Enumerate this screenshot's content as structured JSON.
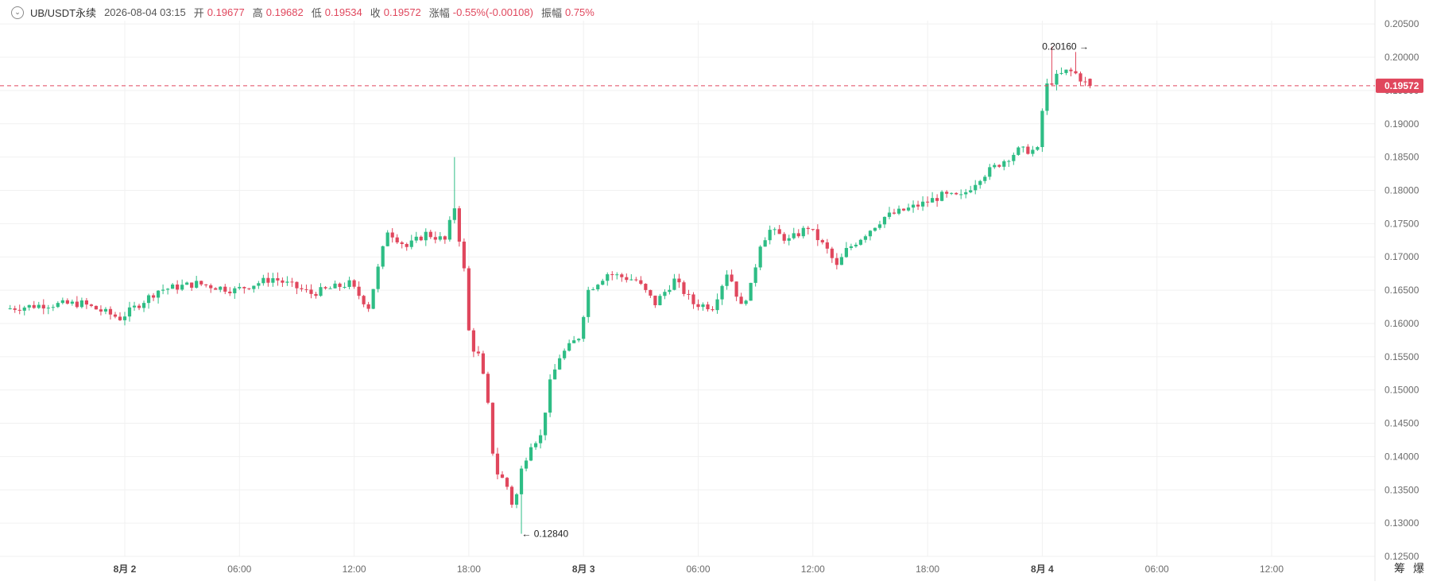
{
  "header": {
    "symbol": "UB/USDT永续",
    "timestamp": "2026-08-04 03:15",
    "open_label": "开",
    "open_value": "0.19677",
    "high_label": "高",
    "high_value": "0.19682",
    "low_label": "低",
    "low_value": "0.19534",
    "close_label": "收",
    "close_value": "0.19572",
    "change_label": "涨幅",
    "change_value": "-0.55%(-0.00108)",
    "amplitude_label": "振幅",
    "amplitude_value": "0.75%"
  },
  "side_tools": {
    "tool1": "筹",
    "tool2": "爆"
  },
  "colors": {
    "up": "#2ebd85",
    "down": "#e0475d",
    "grid": "#f1f1f1",
    "axis_text": "#6b6b6b"
  },
  "chart_data": {
    "type": "candlestick",
    "x_tick_labels": [
      "8月 2",
      "06:00",
      "12:00",
      "18:00",
      "8月 3",
      "06:00",
      "12:00",
      "18:00",
      "8月 4",
      "06:00",
      "12:00"
    ],
    "x_tick_hours": [
      0,
      6,
      12,
      18,
      24,
      30,
      36,
      42,
      48,
      54,
      60
    ],
    "y_ticks": [
      "0.12500",
      "0.13000",
      "0.13500",
      "0.14000",
      "0.14500",
      "0.15000",
      "0.15500",
      "0.16000",
      "0.16500",
      "0.17000",
      "0.17500",
      "0.18000",
      "0.18500",
      "0.19000",
      "0.19500",
      "0.20000",
      "0.20500"
    ],
    "ylim": [
      0.125,
      0.2055
    ],
    "last_price": "0.19572",
    "annotations": [
      {
        "label": "0.20160 →",
        "price": 0.2016,
        "hour": 50.6,
        "anchor": "end"
      },
      {
        "label": "← 0.12840",
        "price": 0.1284,
        "hour": 20.6,
        "anchor": "start"
      }
    ],
    "candle_interval_minutes": 15,
    "anchors": [
      [
        -6.0,
        0.1622
      ],
      [
        -4.0,
        0.1628
      ],
      [
        -2.0,
        0.163
      ],
      [
        0.0,
        0.1608
      ],
      [
        2.0,
        0.165
      ],
      [
        4.0,
        0.166
      ],
      [
        6.0,
        0.165
      ],
      [
        8.0,
        0.1668
      ],
      [
        10.0,
        0.1645
      ],
      [
        12.0,
        0.166
      ],
      [
        13.0,
        0.1625
      ],
      [
        14.0,
        0.174
      ],
      [
        15.0,
        0.1715
      ],
      [
        16.0,
        0.1735
      ],
      [
        17.0,
        0.1725
      ],
      [
        17.5,
        0.1775
      ],
      [
        18.0,
        0.168
      ],
      [
        18.3,
        0.157
      ],
      [
        18.8,
        0.155
      ],
      [
        19.2,
        0.149
      ],
      [
        19.6,
        0.138
      ],
      [
        20.2,
        0.136
      ],
      [
        20.6,
        0.132
      ],
      [
        21.0,
        0.138
      ],
      [
        21.5,
        0.142
      ],
      [
        22.0,
        0.143
      ],
      [
        22.5,
        0.151
      ],
      [
        23.0,
        0.155
      ],
      [
        24.0,
        0.158
      ],
      [
        24.5,
        0.165
      ],
      [
        25.5,
        0.1675
      ],
      [
        27.0,
        0.1665
      ],
      [
        28.0,
        0.163
      ],
      [
        29.0,
        0.1665
      ],
      [
        30.0,
        0.163
      ],
      [
        31.0,
        0.1625
      ],
      [
        31.8,
        0.168
      ],
      [
        32.5,
        0.1625
      ],
      [
        33.0,
        0.1655
      ],
      [
        33.5,
        0.172
      ],
      [
        34.0,
        0.174
      ],
      [
        35.0,
        0.1725
      ],
      [
        36.0,
        0.1745
      ],
      [
        37.0,
        0.171
      ],
      [
        37.5,
        0.1685
      ],
      [
        38.0,
        0.171
      ],
      [
        39.0,
        0.1735
      ],
      [
        40.0,
        0.176
      ],
      [
        41.0,
        0.177
      ],
      [
        42.0,
        0.178
      ],
      [
        43.0,
        0.1792
      ],
      [
        44.0,
        0.179
      ],
      [
        45.0,
        0.182
      ],
      [
        46.0,
        0.184
      ],
      [
        47.0,
        0.186
      ],
      [
        48.0,
        0.186
      ],
      [
        48.4,
        0.1955
      ],
      [
        49.0,
        0.197
      ],
      [
        49.6,
        0.198
      ],
      [
        50.0,
        0.1975
      ],
      [
        50.6,
        0.1958
      ]
    ],
    "wicks": [
      {
        "hour": 17.2,
        "high": 0.185
      },
      {
        "hour": 20.8,
        "low": 0.1284
      },
      {
        "hour": 48.4,
        "high": 0.2016
      },
      {
        "hour": 49.8,
        "high": 0.2008
      }
    ]
  }
}
